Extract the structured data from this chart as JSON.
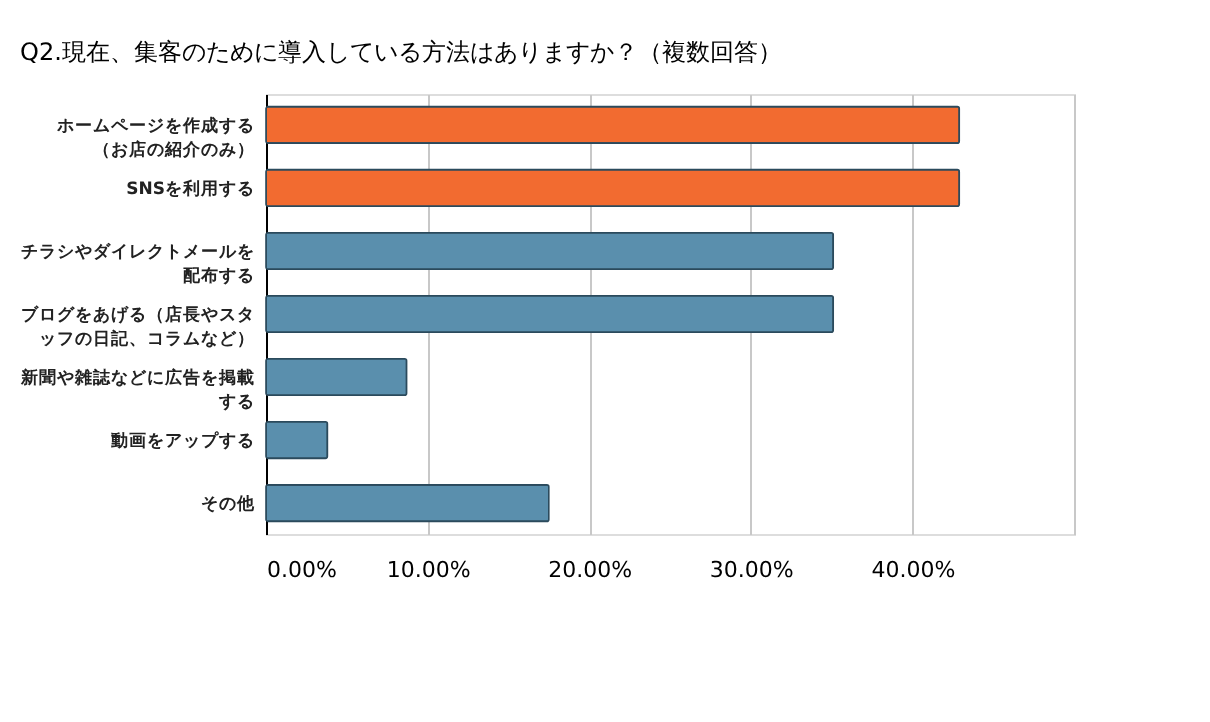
{
  "chart_data": {
    "type": "bar",
    "orientation": "horizontal",
    "title": "Q2.現在、集客のために導入している方法はありますか？（複数回答）",
    "categories": [
      "ホームページを作成する（お店の紹介のみ）",
      "SNSを利用する",
      "チラシやダイレクトメールを配布する",
      "ブログをあげる（店長やスタッフの日記、コラムなど）",
      "新聞や雑誌などに広告を掲載する",
      "動画をアップする",
      "その他"
    ],
    "values": [
      42.9,
      42.9,
      35.1,
      35.1,
      8.7,
      3.8,
      17.5
    ],
    "colors": [
      "#f26b30",
      "#f26b30",
      "#5a8fad",
      "#5a8fad",
      "#5a8fad",
      "#5a8fad",
      "#5a8fad"
    ],
    "xlim": [
      0,
      50
    ],
    "xticks": [
      {
        "value": 0,
        "label": "0.00%"
      },
      {
        "value": 10,
        "label": "10.00%"
      },
      {
        "value": 20,
        "label": "20.00%"
      },
      {
        "value": 30,
        "label": "30.00%"
      },
      {
        "value": 40,
        "label": "40.00%"
      },
      {
        "value": 50,
        "label": null
      }
    ],
    "grid": "x"
  }
}
